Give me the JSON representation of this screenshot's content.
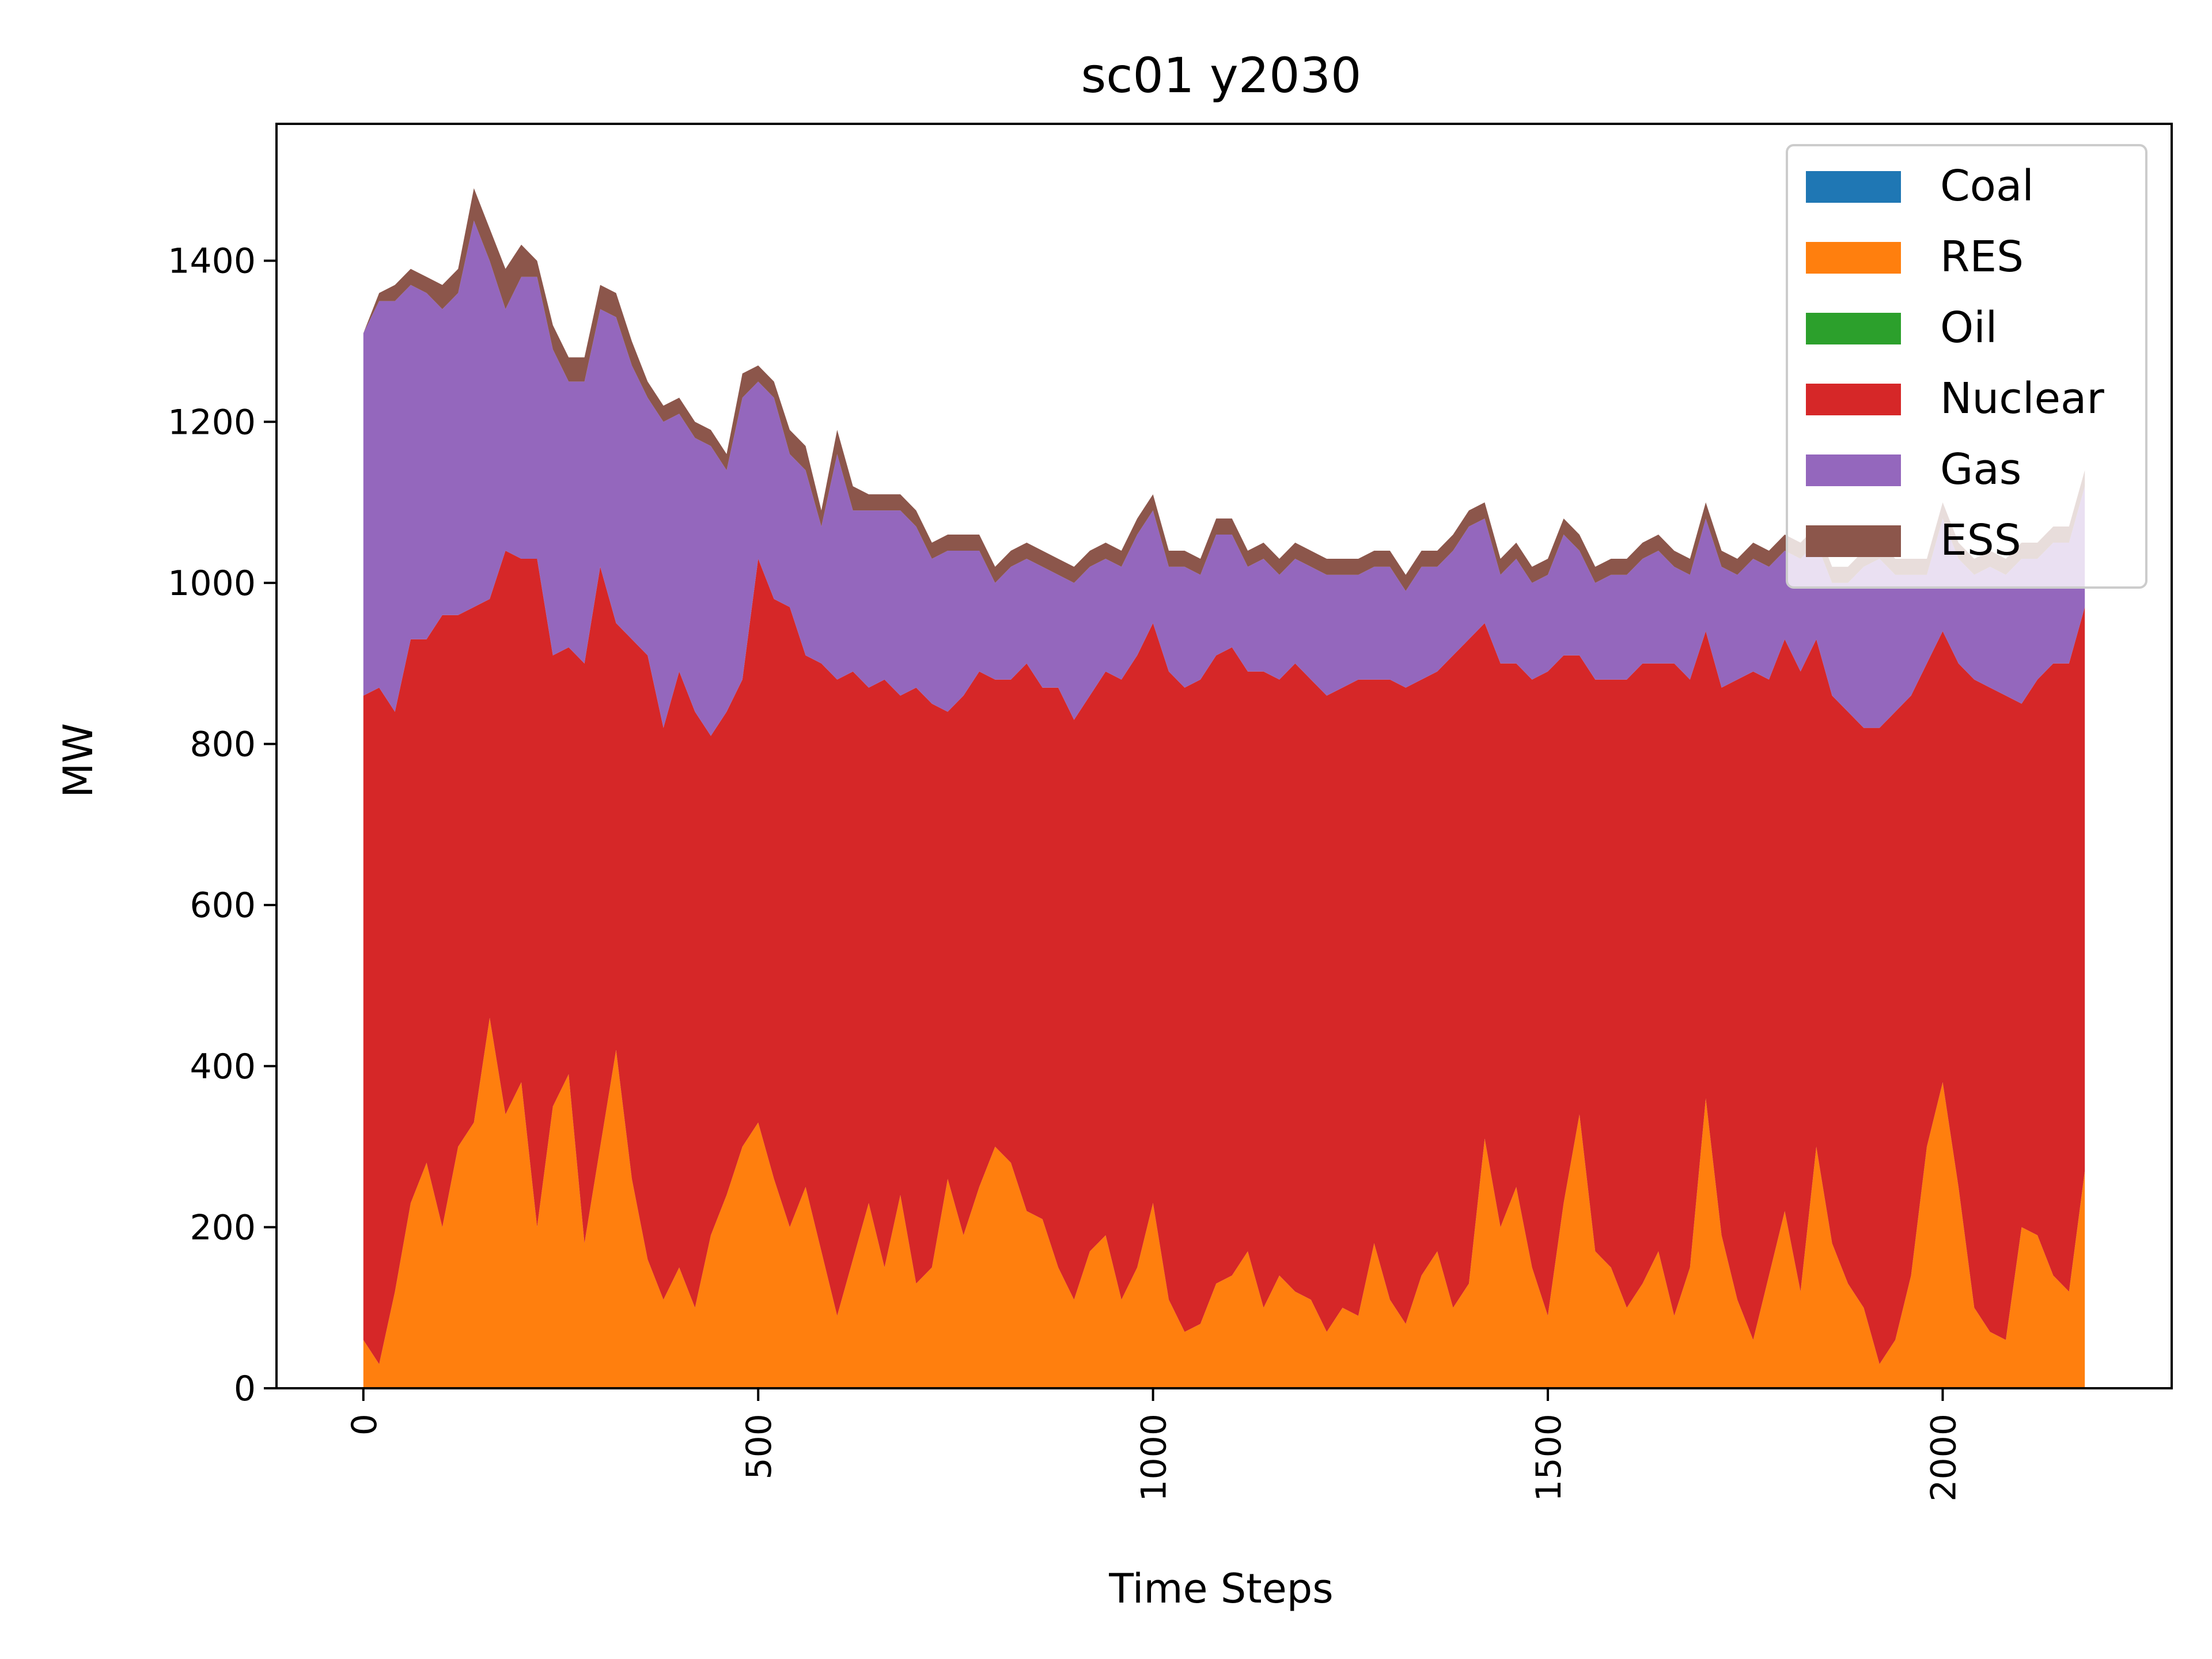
{
  "chart_data": {
    "type": "area",
    "stacked": true,
    "title": "sc01 y2030",
    "xlabel": "Time Steps",
    "ylabel": "MW",
    "xlim": [
      -110,
      2290
    ],
    "ylim": [
      0,
      1570
    ],
    "xticks": [
      0,
      500,
      1000,
      1500,
      2000
    ],
    "yticks": [
      0,
      200,
      400,
      600,
      800,
      1000,
      1200,
      1400
    ],
    "xtick_rotation": 90,
    "grid": false,
    "legend_position": "top-right",
    "x": [
      0,
      20,
      40,
      60,
      80,
      100,
      120,
      140,
      160,
      180,
      200,
      220,
      240,
      260,
      280,
      300,
      320,
      340,
      360,
      380,
      400,
      420,
      440,
      460,
      480,
      500,
      520,
      540,
      560,
      580,
      600,
      620,
      640,
      660,
      680,
      700,
      720,
      740,
      760,
      780,
      800,
      820,
      840,
      860,
      880,
      900,
      920,
      940,
      960,
      980,
      1000,
      1020,
      1040,
      1060,
      1080,
      1100,
      1120,
      1140,
      1160,
      1180,
      1200,
      1220,
      1240,
      1260,
      1280,
      1300,
      1320,
      1340,
      1360,
      1380,
      1400,
      1420,
      1440,
      1460,
      1480,
      1500,
      1520,
      1540,
      1560,
      1580,
      1600,
      1620,
      1640,
      1660,
      1680,
      1700,
      1720,
      1740,
      1760,
      1780,
      1800,
      1820,
      1840,
      1860,
      1880,
      1900,
      1920,
      1940,
      1960,
      1980,
      2000,
      2020,
      2040,
      2060,
      2080,
      2100,
      2120,
      2140,
      2160,
      2180
    ],
    "series": [
      {
        "name": "Coal",
        "color": "#1f77b4",
        "values": [
          0,
          0,
          0,
          0,
          0,
          0,
          0,
          0,
          0,
          0,
          0,
          0,
          0,
          0,
          0,
          0,
          0,
          0,
          0,
          0,
          0,
          0,
          0,
          0,
          0,
          0,
          0,
          0,
          0,
          0,
          0,
          0,
          0,
          0,
          0,
          0,
          0,
          0,
          0,
          0,
          0,
          0,
          0,
          0,
          0,
          0,
          0,
          0,
          0,
          0,
          0,
          0,
          0,
          0,
          0,
          0,
          0,
          0,
          0,
          0,
          0,
          0,
          0,
          0,
          0,
          0,
          0,
          0,
          0,
          0,
          0,
          0,
          0,
          0,
          0,
          0,
          0,
          0,
          0,
          0,
          0,
          0,
          0,
          0,
          0,
          0,
          0,
          0,
          0,
          0,
          0,
          0,
          0,
          0,
          0,
          0,
          0,
          0,
          0,
          0,
          0,
          0,
          0,
          0,
          0,
          0,
          0,
          0,
          0,
          0
        ]
      },
      {
        "name": "RES",
        "color": "#ff7f0e",
        "values": [
          60,
          30,
          120,
          230,
          280,
          200,
          300,
          330,
          460,
          340,
          380,
          200,
          350,
          390,
          180,
          300,
          420,
          260,
          160,
          110,
          150,
          100,
          190,
          240,
          300,
          330,
          260,
          200,
          250,
          170,
          90,
          160,
          230,
          150,
          240,
          130,
          150,
          260,
          190,
          250,
          300,
          280,
          220,
          210,
          150,
          110,
          170,
          190,
          110,
          150,
          230,
          110,
          70,
          80,
          130,
          140,
          170,
          100,
          140,
          120,
          110,
          70,
          100,
          90,
          180,
          110,
          80,
          140,
          170,
          100,
          130,
          310,
          200,
          250,
          150,
          90,
          230,
          340,
          170,
          150,
          100,
          130,
          170,
          90,
          150,
          360,
          190,
          110,
          60,
          140,
          220,
          120,
          300,
          180,
          130,
          100,
          30,
          60,
          140,
          300,
          380,
          250,
          100,
          70,
          60,
          200,
          190,
          140,
          120,
          270
        ]
      },
      {
        "name": "Oil",
        "color": "#2ca02c",
        "values": [
          0,
          0,
          0,
          0,
          0,
          0,
          0,
          0,
          0,
          0,
          0,
          0,
          0,
          0,
          0,
          0,
          0,
          0,
          0,
          0,
          0,
          0,
          0,
          0,
          0,
          0,
          0,
          0,
          0,
          0,
          0,
          0,
          0,
          0,
          0,
          0,
          0,
          0,
          0,
          0,
          0,
          0,
          0,
          0,
          0,
          0,
          0,
          0,
          0,
          0,
          0,
          0,
          0,
          0,
          0,
          0,
          0,
          0,
          0,
          0,
          0,
          0,
          0,
          0,
          0,
          0,
          0,
          0,
          0,
          0,
          0,
          0,
          0,
          0,
          0,
          0,
          0,
          0,
          0,
          0,
          0,
          0,
          0,
          0,
          0,
          0,
          0,
          0,
          0,
          0,
          0,
          0,
          0,
          0,
          0,
          0,
          0,
          0,
          0,
          0,
          0,
          0,
          0,
          0,
          0,
          0,
          0,
          0,
          0,
          0
        ]
      },
      {
        "name": "Nuclear",
        "color": "#d62728",
        "values": [
          800,
          840,
          720,
          700,
          650,
          760,
          660,
          640,
          520,
          700,
          650,
          830,
          560,
          530,
          720,
          720,
          530,
          670,
          750,
          710,
          740,
          740,
          620,
          600,
          580,
          700,
          720,
          770,
          660,
          730,
          790,
          730,
          640,
          730,
          620,
          740,
          700,
          580,
          670,
          640,
          580,
          600,
          680,
          660,
          720,
          720,
          690,
          700,
          770,
          760,
          720,
          780,
          800,
          800,
          780,
          780,
          720,
          790,
          740,
          780,
          770,
          790,
          770,
          790,
          700,
          770,
          790,
          740,
          720,
          810,
          800,
          640,
          700,
          650,
          730,
          800,
          680,
          570,
          710,
          730,
          780,
          770,
          730,
          810,
          730,
          580,
          680,
          770,
          830,
          740,
          710,
          770,
          630,
          680,
          710,
          720,
          790,
          780,
          720,
          600,
          560,
          650,
          780,
          800,
          800,
          650,
          690,
          760,
          780,
          700
        ]
      },
      {
        "name": "Gas",
        "color": "#9467bd",
        "values": [
          450,
          480,
          510,
          440,
          430,
          380,
          400,
          480,
          420,
          300,
          350,
          350,
          380,
          330,
          350,
          320,
          380,
          340,
          320,
          380,
          320,
          340,
          360,
          300,
          350,
          220,
          250,
          190,
          230,
          170,
          280,
          200,
          220,
          210,
          230,
          200,
          180,
          200,
          180,
          150,
          120,
          140,
          130,
          150,
          140,
          170,
          160,
          140,
          140,
          150,
          140,
          130,
          150,
          130,
          150,
          140,
          130,
          140,
          130,
          130,
          140,
          150,
          140,
          130,
          140,
          140,
          120,
          140,
          130,
          130,
          140,
          130,
          110,
          130,
          120,
          120,
          150,
          130,
          120,
          130,
          130,
          130,
          140,
          120,
          130,
          140,
          150,
          130,
          140,
          140,
          110,
          140,
          120,
          140,
          160,
          200,
          210,
          170,
          150,
          110,
          140,
          130,
          130,
          150,
          150,
          180,
          150,
          150,
          150,
          150
        ]
      },
      {
        "name": "ESS",
        "color": "#8c564b",
        "values": [
          0,
          10,
          20,
          20,
          20,
          30,
          30,
          40,
          40,
          50,
          40,
          20,
          30,
          30,
          30,
          30,
          30,
          30,
          20,
          20,
          20,
          20,
          20,
          20,
          30,
          20,
          20,
          30,
          30,
          20,
          30,
          30,
          20,
          20,
          20,
          20,
          20,
          20,
          20,
          20,
          20,
          20,
          20,
          20,
          20,
          20,
          20,
          20,
          20,
          20,
          20,
          20,
          20,
          20,
          20,
          20,
          20,
          20,
          20,
          20,
          20,
          20,
          20,
          20,
          20,
          20,
          20,
          20,
          20,
          20,
          20,
          20,
          20,
          20,
          20,
          20,
          20,
          20,
          20,
          20,
          20,
          20,
          20,
          20,
          20,
          20,
          20,
          20,
          20,
          20,
          20,
          20,
          20,
          20,
          20,
          20,
          20,
          20,
          20,
          20,
          20,
          20,
          20,
          20,
          20,
          20,
          20,
          20,
          20,
          20
        ]
      }
    ]
  }
}
